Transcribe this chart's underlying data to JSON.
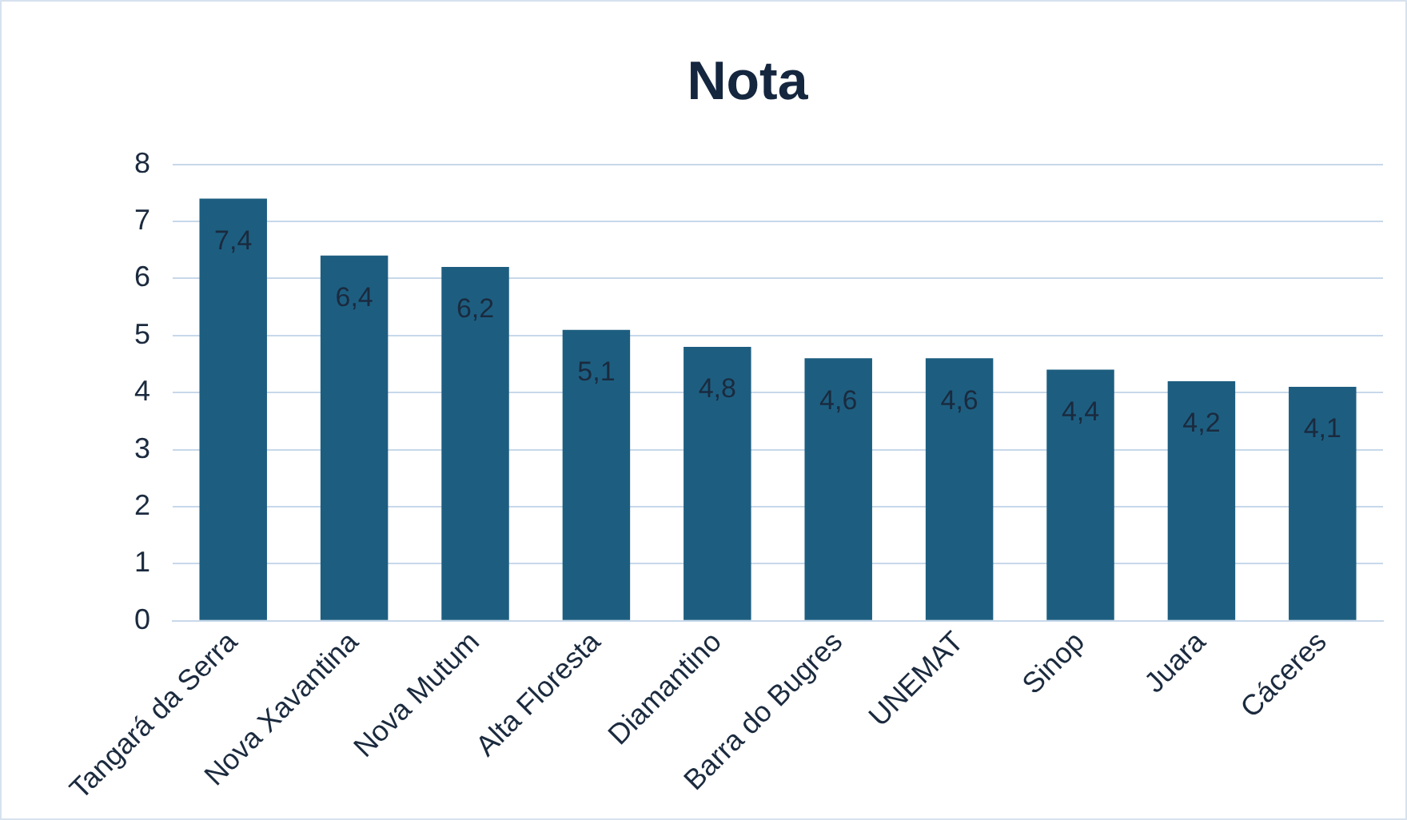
{
  "chart_data": {
    "type": "bar",
    "title": "Nota",
    "categories": [
      "Tangará da Serra",
      "Nova Xavantina",
      "Nova Mutum",
      "Alta Floresta",
      "Diamantino",
      "Barra do Bugres",
      "UNEMAT",
      "Sinop",
      "Juara",
      "Cáceres"
    ],
    "values": [
      7.4,
      6.4,
      6.2,
      5.1,
      4.8,
      4.6,
      4.6,
      4.4,
      4.2,
      4.1
    ],
    "value_labels": [
      "7,4",
      "6,4",
      "6,2",
      "5,1",
      "4,8",
      "4,6",
      "4,6",
      "4,4",
      "4,2",
      "4,1"
    ],
    "color": "#1d5e80",
    "ylim": [
      0,
      8
    ],
    "yticks": [
      0,
      1,
      2,
      3,
      4,
      5,
      6,
      7,
      8
    ],
    "grid": "y",
    "legend": false
  }
}
